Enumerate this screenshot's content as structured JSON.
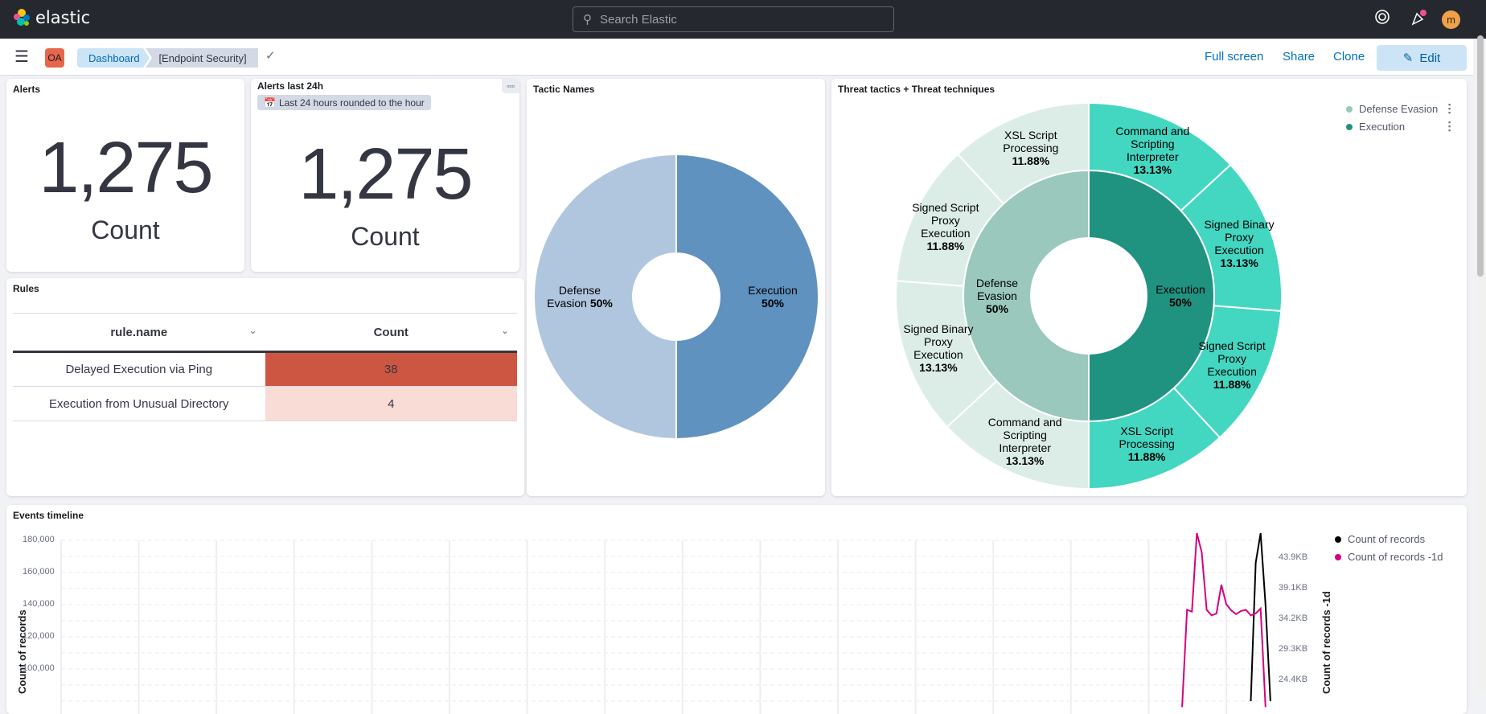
{
  "header": {
    "brand": "elastic",
    "search_placeholder": "Search Elastic",
    "avatar_initial": "m",
    "help_icon": "lifebuoy-icon",
    "news_icon": "cheer-icon",
    "news_badge_color": "#f04e98"
  },
  "subheader": {
    "space_initials": "OA",
    "breadcrumbs": [
      "Dashboard",
      "[Endpoint Security]"
    ],
    "actions": {
      "full_screen": "Full screen",
      "share": "Share",
      "clone": "Clone",
      "edit": "Edit"
    }
  },
  "panels": {
    "alerts": {
      "title": "Alerts",
      "value": "1,275",
      "label": "Count"
    },
    "alerts24h": {
      "title": "Alerts last 24h",
      "badge": "Last 24 hours rounded to the hour",
      "value": "1,275",
      "label": "Count"
    },
    "rules": {
      "title": "Rules",
      "columns": [
        "rule.name",
        "Count"
      ],
      "rows": [
        {
          "name": "Delayed Execution via Ping",
          "count": "38",
          "color": "#cc5642"
        },
        {
          "name": "Execution from Unusual Directory",
          "count": "4",
          "color": "#f9dcd5"
        }
      ]
    },
    "tactic": {
      "title": "Tactic Names"
    },
    "threat": {
      "title": "Threat tactics + Threat techniques",
      "legend": [
        "Defense Evasion",
        "Execution"
      ]
    },
    "events": {
      "title": "Events timeline"
    }
  },
  "chart_data": [
    {
      "type": "pie",
      "title": "Tactic Names",
      "donut": true,
      "slices": [
        {
          "label": "Execution",
          "value": 50,
          "pct": "50%",
          "color": "#6092c0"
        },
        {
          "label": "Defense Evasion",
          "value": 50,
          "pct": "50%",
          "color": "#b0c6df"
        }
      ]
    },
    {
      "type": "pie",
      "title": "Threat tactics + Threat techniques",
      "donut": true,
      "inner": [
        {
          "label": "Execution",
          "value": 50,
          "pct": "50%",
          "color": "#209280"
        },
        {
          "label": "Defense Evasion",
          "value": 50,
          "pct": "50%",
          "color": "#9ac8bc"
        }
      ],
      "outer": [
        {
          "parent": "Execution",
          "label": "Command and Scripting Interpreter",
          "value": 13.13,
          "pct": "13.13%",
          "color": "#43d6c0"
        },
        {
          "parent": "Execution",
          "label": "Signed Binary Proxy Execution",
          "value": 13.13,
          "pct": "13.13%",
          "color": "#43d6c0"
        },
        {
          "parent": "Execution",
          "label": "Signed Script Proxy Execution",
          "value": 11.88,
          "pct": "11.88%",
          "color": "#43d6c0"
        },
        {
          "parent": "Execution",
          "label": "XSL Script Processing",
          "value": 11.88,
          "pct": "11.88%",
          "color": "#43d6c0"
        },
        {
          "parent": "Defense Evasion",
          "label": "Command and Scripting Interpreter",
          "value": 13.13,
          "pct": "13.13%",
          "color": "#dcede8"
        },
        {
          "parent": "Defense Evasion",
          "label": "Signed Binary Proxy Execution",
          "value": 13.13,
          "pct": "13.13%",
          "color": "#dcede8"
        },
        {
          "parent": "Defense Evasion",
          "label": "Signed Script Proxy Execution",
          "value": 11.88,
          "pct": "11.88%",
          "color": "#dcede8"
        },
        {
          "parent": "Defense Evasion",
          "label": "XSL Script Processing",
          "value": 11.88,
          "pct": "11.88%",
          "color": "#dcede8"
        }
      ],
      "legend": "top-right"
    },
    {
      "type": "line",
      "title": "Events timeline",
      "ylabel_left": "Count of records",
      "ylabel_right": "Count of records -1d",
      "left_ticks": [
        "180,000",
        "160,000",
        "140,000",
        "120,000",
        "100,000"
      ],
      "right_ticks": [
        "43.9KB",
        "39.1KB",
        "34.2KB",
        "29.3KB",
        "24.4KB"
      ],
      "grid": true,
      "legend": "right",
      "series": [
        {
          "name": "Count of records",
          "axis": "left",
          "color": "#000000",
          "values": [
            null,
            null,
            null,
            null,
            null,
            null,
            null,
            null,
            null,
            null,
            null,
            null,
            null,
            null,
            80000,
            166000,
            184500,
            140000,
            80000
          ]
        },
        {
          "name": "Count of records -1d",
          "axis": "right",
          "unit": "KB",
          "color": "#d6007f",
          "values": [
            20,
            35.6,
            35.3,
            47.9,
            44.8,
            35.6,
            34.7,
            35.0,
            39.6,
            36.5,
            35.5,
            34.9,
            35.4,
            35.6,
            34.7,
            35.0,
            35.8,
            20,
            null
          ]
        }
      ]
    }
  ]
}
